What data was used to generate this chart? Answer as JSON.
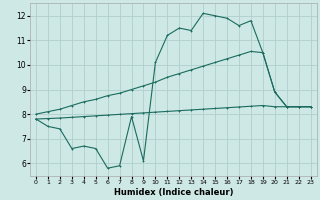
{
  "xlabel": "Humidex (Indice chaleur)",
  "bg_color": "#cde8e5",
  "grid_color": "#b8d8d5",
  "line_color": "#1a6b5e",
  "xlim": [
    -0.5,
    23.5
  ],
  "ylim": [
    5.5,
    12.5
  ],
  "xticks": [
    0,
    1,
    2,
    3,
    4,
    5,
    6,
    7,
    8,
    9,
    10,
    11,
    12,
    13,
    14,
    15,
    16,
    17,
    18,
    19,
    20,
    21,
    22,
    23
  ],
  "yticks": [
    6,
    7,
    8,
    9,
    10,
    11,
    12
  ],
  "line1_x": [
    0,
    1,
    2,
    3,
    4,
    5,
    6,
    7,
    8,
    9,
    10,
    11,
    12,
    13,
    14,
    15,
    16,
    17,
    18,
    19,
    20,
    21,
    22,
    23
  ],
  "line1_y": [
    7.8,
    7.5,
    7.4,
    6.6,
    6.7,
    6.6,
    5.8,
    5.9,
    7.9,
    6.1,
    10.1,
    11.2,
    11.5,
    11.4,
    12.1,
    12.0,
    11.9,
    11.6,
    11.8,
    10.5,
    8.9,
    8.3,
    8.3,
    8.3
  ],
  "line2_x": [
    0,
    1,
    2,
    3,
    4,
    5,
    6,
    7,
    8,
    9,
    10,
    11,
    12,
    13,
    14,
    15,
    16,
    17,
    18,
    19,
    20,
    21,
    22,
    23
  ],
  "line2_y": [
    8.0,
    8.1,
    8.2,
    8.35,
    8.5,
    8.6,
    8.75,
    8.85,
    9.0,
    9.15,
    9.3,
    9.5,
    9.65,
    9.8,
    9.95,
    10.1,
    10.25,
    10.4,
    10.55,
    10.5,
    8.9,
    8.3,
    8.3,
    8.3
  ],
  "line3_x": [
    0,
    1,
    2,
    3,
    4,
    5,
    6,
    7,
    8,
    9,
    10,
    11,
    12,
    13,
    14,
    15,
    16,
    17,
    18,
    19,
    20,
    21,
    22,
    23
  ],
  "line3_y": [
    7.8,
    7.82,
    7.84,
    7.87,
    7.9,
    7.93,
    7.96,
    7.99,
    8.02,
    8.05,
    8.08,
    8.11,
    8.14,
    8.17,
    8.2,
    8.23,
    8.26,
    8.29,
    8.32,
    8.35,
    8.3,
    8.3,
    8.3,
    8.3
  ]
}
